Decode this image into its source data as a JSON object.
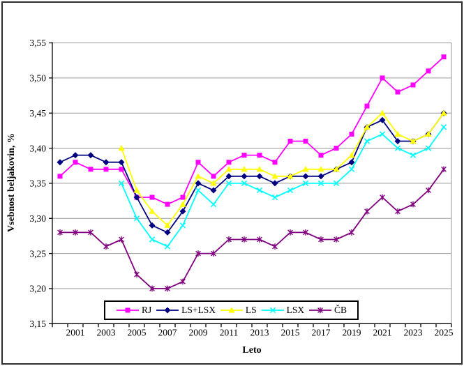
{
  "chart_data": {
    "type": "line",
    "title": "",
    "xlabel": "Leto",
    "ylabel": "Vsebnost beljakovin, %",
    "x": [
      2000,
      2001,
      2002,
      2003,
      2004,
      2005,
      2006,
      2007,
      2008,
      2009,
      2010,
      2011,
      2012,
      2013,
      2014,
      2015,
      2016,
      2017,
      2018,
      2019,
      2020,
      2021,
      2022,
      2023,
      2024,
      2025
    ],
    "x_tick_labels": [
      "2001",
      "2003",
      "2005",
      "2007",
      "2009",
      "2011",
      "2013",
      "2015",
      "2017",
      "2019",
      "2021",
      "2023",
      "2025"
    ],
    "y_ticks": [
      3.15,
      3.2,
      3.25,
      3.3,
      3.35,
      3.4,
      3.45,
      3.5,
      3.55
    ],
    "y_tick_labels": [
      "3,15",
      "3,20",
      "3,25",
      "3,30",
      "3,35",
      "3,40",
      "3,45",
      "3,50",
      "3,55"
    ],
    "ylim": [
      3.15,
      3.55
    ],
    "grid": "horizontal",
    "legend_position": "bottom",
    "series": [
      {
        "name": "RJ",
        "color": "#FF00FF",
        "marker": "square",
        "values": [
          3.36,
          3.38,
          3.37,
          3.37,
          3.37,
          3.33,
          3.33,
          3.32,
          3.33,
          3.38,
          3.36,
          3.38,
          3.39,
          3.39,
          3.38,
          3.41,
          3.41,
          3.39,
          3.4,
          3.42,
          3.46,
          3.5,
          3.48,
          3.49,
          3.51,
          3.53
        ]
      },
      {
        "name": "LS+LSX",
        "color": "#000080",
        "marker": "diamond",
        "values": [
          3.38,
          3.39,
          3.39,
          3.38,
          3.38,
          3.33,
          3.29,
          3.28,
          3.31,
          3.35,
          3.34,
          3.36,
          3.36,
          3.36,
          3.35,
          3.36,
          3.36,
          3.36,
          3.37,
          3.38,
          3.43,
          3.44,
          3.41,
          3.41,
          3.42,
          3.45
        ]
      },
      {
        "name": "LS",
        "color": "#FFFF00",
        "marker": "triangle",
        "values": [
          null,
          null,
          null,
          null,
          3.4,
          3.34,
          3.31,
          3.29,
          3.32,
          3.36,
          3.35,
          3.37,
          3.37,
          3.37,
          3.36,
          3.36,
          3.37,
          3.37,
          3.37,
          3.39,
          3.43,
          3.45,
          3.42,
          3.41,
          3.42,
          3.45
        ]
      },
      {
        "name": "LSX",
        "color": "#00FFFF",
        "marker": "x",
        "values": [
          null,
          null,
          null,
          null,
          3.35,
          3.3,
          3.27,
          3.26,
          3.29,
          3.34,
          3.32,
          3.35,
          3.35,
          3.34,
          3.33,
          3.34,
          3.35,
          3.35,
          3.35,
          3.37,
          3.41,
          3.42,
          3.4,
          3.39,
          3.4,
          3.43
        ]
      },
      {
        "name": "ČB",
        "color": "#800080",
        "marker": "star",
        "values": [
          3.28,
          3.28,
          3.28,
          3.26,
          3.27,
          3.22,
          3.2,
          3.2,
          3.21,
          3.25,
          3.25,
          3.27,
          3.27,
          3.27,
          3.26,
          3.28,
          3.28,
          3.27,
          3.27,
          3.28,
          3.31,
          3.33,
          3.31,
          3.32,
          3.34,
          3.37
        ]
      }
    ]
  },
  "colors": {
    "gridline": "#9a9a9a",
    "axis": "#000000",
    "plot_border": "#9a9a9a",
    "frame": "#2e2e2e",
    "background": "#ffffff"
  }
}
